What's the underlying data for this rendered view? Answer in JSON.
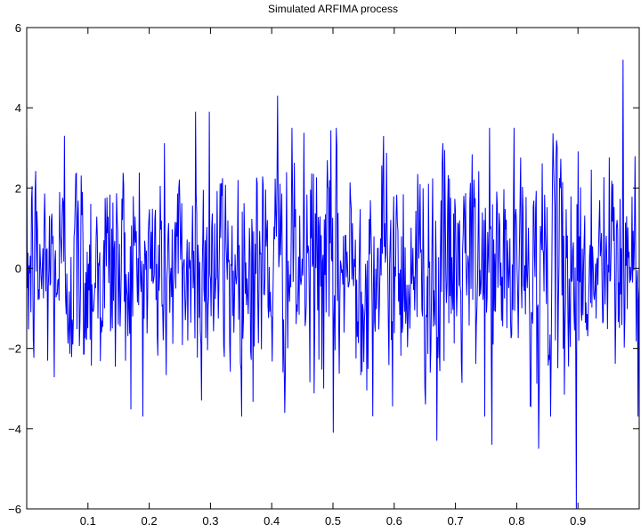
{
  "chart_data": {
    "type": "line",
    "title": "Simulated ARFIMA process",
    "xlabel": "",
    "ylabel": "",
    "xlim": [
      0,
      1
    ],
    "ylim": [
      -6,
      6
    ],
    "x_ticks": [
      0.1,
      0.2,
      0.3,
      0.4,
      0.5,
      0.6,
      0.7,
      0.8,
      0.9
    ],
    "x_tick_labels": [
      "0.1",
      "0.2",
      "0.3",
      "0.4",
      "0.5",
      "0.6",
      "0.7",
      "0.8",
      "0.9"
    ],
    "y_ticks": [
      -6,
      -4,
      -2,
      0,
      2,
      4,
      6
    ],
    "y_tick_labels": [
      "−6",
      "−4",
      "−2",
      "0",
      "2",
      "4",
      "6"
    ],
    "grid": false,
    "series": [
      {
        "color": "#0000ff",
        "n_points": 1024,
        "x_start": 0,
        "x_end": 1,
        "notable_values": [
          {
            "x": 0.062,
            "y": 3.3
          },
          {
            "x": 0.276,
            "y": 3.9
          },
          {
            "x": 0.298,
            "y": 3.9
          },
          {
            "x": 0.41,
            "y": 4.3
          },
          {
            "x": 0.5,
            "y": 4.6
          },
          {
            "x": 0.5,
            "y": -4.1
          },
          {
            "x": 0.67,
            "y": -4.3
          },
          {
            "x": 0.76,
            "y": -4.4
          },
          {
            "x": 0.836,
            "y": -4.5
          },
          {
            "x": 0.897,
            "y": -6.0
          },
          {
            "x": 0.974,
            "y": 5.2
          }
        ]
      }
    ]
  }
}
